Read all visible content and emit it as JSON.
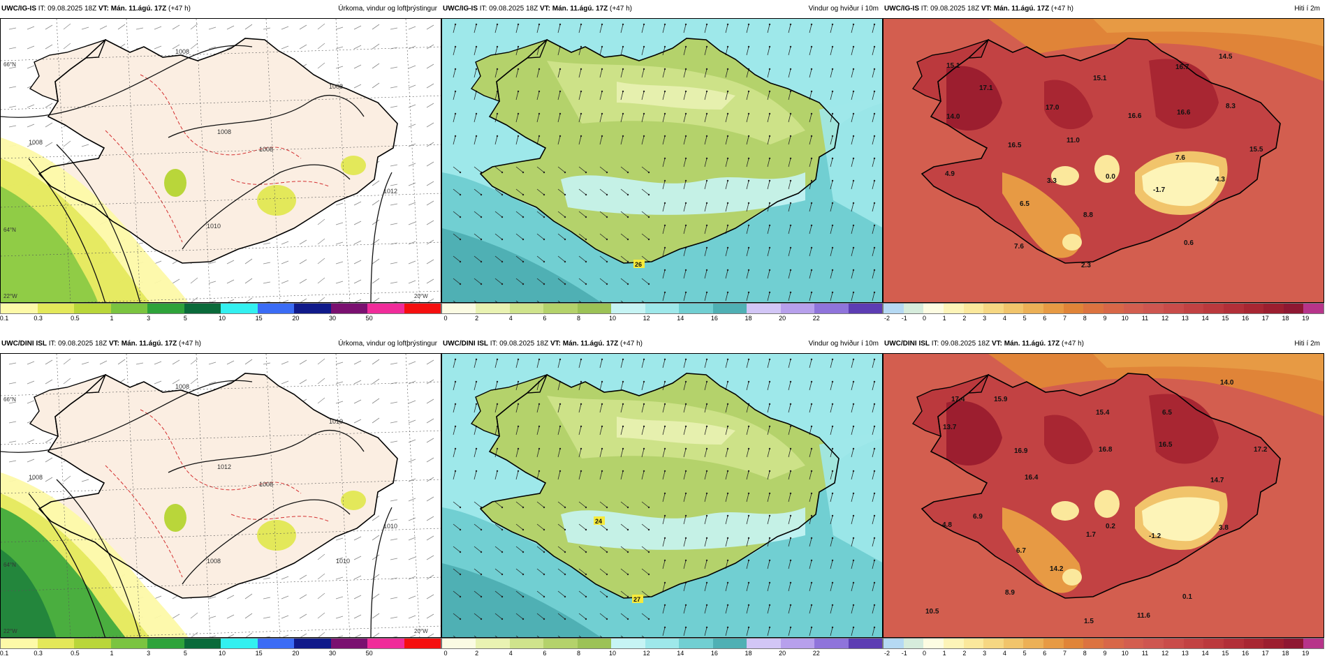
{
  "panels": [
    {
      "model": "UWC/IG-IS",
      "it_label": "IT:",
      "it": "09.08.2025 18Z",
      "vt_label": "VT:",
      "vt": "Mán. 11.ágú. 17Z",
      "lead": "(+47 h)",
      "title": "Úrkoma, vindur og loftþrýstingur"
    },
    {
      "model": "UWC/IG-IS",
      "it_label": "IT:",
      "it": "09.08.2025 18Z",
      "vt_label": "VT:",
      "vt": "Mán. 11.ágú. 17Z",
      "lead": "(+47 h)",
      "title": "Vindur og hviður í 10m"
    },
    {
      "model": "UWC/IG-IS",
      "it_label": "IT:",
      "it": "09.08.2025 18Z",
      "vt_label": "VT:",
      "vt": "Mán. 11.ágú. 17Z",
      "lead": "(+47 h)",
      "title": "Hiti í 2m"
    },
    {
      "model": "UWC/DINI ISL",
      "it_label": "IT:",
      "it": "09.08.2025 18Z",
      "vt_label": "VT:",
      "vt": "Mán. 11.ágú. 17Z",
      "lead": "(+47 h)",
      "title": "Úrkoma, vindur og loftþrýstingur"
    },
    {
      "model": "UWC/DINI ISL",
      "it_label": "IT:",
      "it": "09.08.2025 18Z",
      "vt_label": "VT:",
      "vt": "Mán. 11.ágú. 17Z",
      "lead": "(+47 h)",
      "title": "Vindur og hviður í 10m"
    },
    {
      "model": "UWC/DINI ISL",
      "it_label": "IT:",
      "it": "09.08.2025 18Z",
      "vt_label": "VT:",
      "vt": "Mán. 11.ágú. 17Z",
      "lead": "(+47 h)",
      "title": "Hiti í 2m"
    }
  ],
  "legends": {
    "precip": {
      "ticks": [
        "0.1",
        "0.3",
        "0.5",
        "1",
        "3",
        "5",
        "10",
        "15",
        "20",
        "30",
        "50"
      ],
      "colors": [
        "#fdf9a8",
        "#e3e85a",
        "#b9d63a",
        "#7bc440",
        "#2ea33a",
        "#0a6a3a",
        "#33f0f0",
        "#3b6cf5",
        "#101a8a",
        "#7a1070",
        "#f02c9a",
        "#f50f0f"
      ]
    },
    "wind": {
      "ticks": [
        "0",
        "2",
        "4",
        "6",
        "8",
        "10",
        "12",
        "14",
        "16",
        "18",
        "20",
        "22"
      ],
      "colors": [
        "#fbfbe3",
        "#e9f2b2",
        "#cfe38c",
        "#b4d26b",
        "#9cc256",
        "#c6f4f4",
        "#9ee8ea",
        "#71cfd2",
        "#4fb0b4",
        "#d2c6f6",
        "#b7a0ec",
        "#8f74db",
        "#5d3db3"
      ]
    },
    "temp": {
      "ticks": [
        "-2",
        "-1",
        "0",
        "1",
        "2",
        "3",
        "4",
        "5",
        "6",
        "7",
        "8",
        "9",
        "10",
        "11",
        "12",
        "13",
        "14",
        "15",
        "16",
        "17",
        "18",
        "19"
      ],
      "colors": [
        "#b5d9f3",
        "#d6ecdc",
        "#fdfce2",
        "#fdf4b8",
        "#fbe89c",
        "#f6d782",
        "#f1c46b",
        "#ecb056",
        "#e79a44",
        "#e08438",
        "#dc7340",
        "#d86748",
        "#d35e4f",
        "#ce5650",
        "#c94c4a",
        "#c24243",
        "#bb393d",
        "#b22f38",
        "#a82632",
        "#9c1e2f",
        "#8e1732",
        "#b7348a"
      ]
    }
  },
  "labels": {
    "temp_top": [
      "15.1",
      "17.1",
      "14.0",
      "16.7",
      "14.5",
      "15.1",
      "17.0",
      "16.6",
      "16.6",
      "8.3",
      "11.0",
      "16.5",
      "7.6",
      "15.5",
      "4.9",
      "3.3",
      "0.0",
      "-1.7",
      "4.3",
      "6.5",
      "8.8",
      "7.6",
      "0.6",
      "2.3"
    ],
    "temp_bottom": [
      "17.4",
      "13.7",
      "15.9",
      "14.0",
      "15.4",
      "6.5",
      "16.9",
      "16.8",
      "16.5",
      "17.2",
      "16.4",
      "14.7",
      "6.9",
      "4.8",
      "1.7",
      "0.2",
      "-1.2",
      "3.8",
      "6.7",
      "14.2",
      "8.9",
      "0.1",
      "10.5",
      "1.5",
      "11.6"
    ],
    "wind_top": [
      "26"
    ],
    "wind_bottom": [
      "24",
      "27"
    ],
    "isobars_top": [
      "1008",
      "1008",
      "1008",
      "1008",
      "1010",
      "1012",
      "1008"
    ],
    "isobars_bottom": [
      "1008",
      "1010",
      "1008",
      "1008",
      "1008",
      "1010",
      "1012",
      "1010"
    ],
    "latitude_ticks": [
      "66°N",
      "64°N"
    ],
    "longitude_ticks": [
      "22°W",
      "20°W"
    ]
  },
  "colors": {
    "land_precip": "#fbeee2",
    "sea": "#ffffff",
    "coast": "#000000",
    "isobar": "#111111",
    "isotherm_dash": "#d43030",
    "grid": "#555555"
  }
}
